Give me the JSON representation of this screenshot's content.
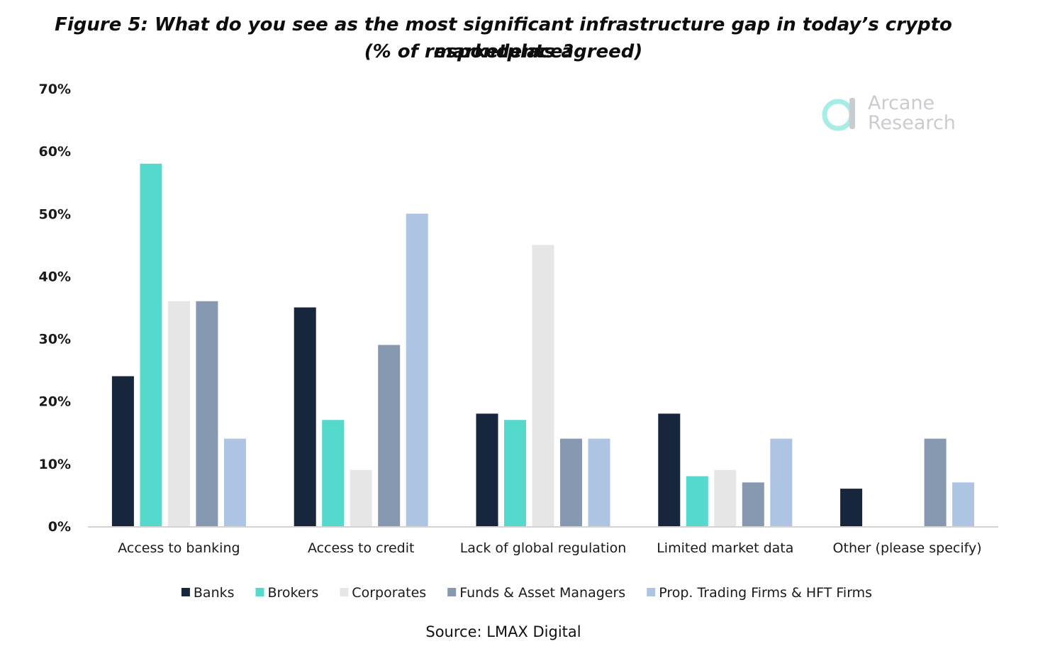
{
  "figure_title": "Figure 5: What do you see as the most significant infrastructure gap in today’s crypto marketplace?",
  "figure_subtitle": "(% of respondents agreed)",
  "source": "Source: LMAX Digital",
  "logo": {
    "line1": "Arcane",
    "line2": "Research",
    "icon": "arcane-logo-mark",
    "color": "#c9ccd0",
    "accent_color": "#a8ece6"
  },
  "chart_data": {
    "type": "bar",
    "title": "Figure 5: What do you see as the most significant infrastructure gap in today’s crypto marketplace?",
    "subtitle": "(% of respondents agreed)",
    "xlabel": "",
    "ylabel": "",
    "ylim": [
      0,
      70
    ],
    "y_ticks": [
      0,
      10,
      20,
      30,
      40,
      50,
      60,
      70
    ],
    "y_tick_labels": [
      "0%",
      "10%",
      "20%",
      "30%",
      "40%",
      "50%",
      "60%",
      "70%"
    ],
    "grid": false,
    "legend_position": "bottom",
    "categories": [
      "Access to banking",
      "Access to credit",
      "Lack of global regulation",
      "Limited market data",
      "Other (please specify)"
    ],
    "series": [
      {
        "name": "Banks",
        "color": "#17253d",
        "values": [
          24,
          35,
          18,
          18,
          6
        ]
      },
      {
        "name": "Brokers",
        "color": "#56d9cd",
        "values": [
          58,
          17,
          17,
          8,
          0
        ]
      },
      {
        "name": "Corporates",
        "color": "#e6e6e6",
        "values": [
          36,
          9,
          45,
          9,
          0
        ]
      },
      {
        "name": "Funds & Asset Managers",
        "color": "#8798b1",
        "values": [
          36,
          29,
          14,
          7,
          14
        ]
      },
      {
        "name": "Prop. Trading Firms & HFT Firms",
        "color": "#aec4e3",
        "values": [
          14,
          50,
          14,
          14,
          7
        ]
      }
    ]
  }
}
